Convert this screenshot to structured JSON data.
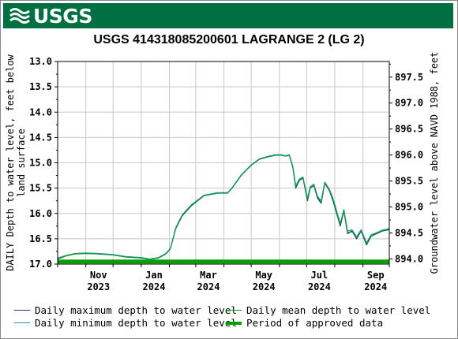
{
  "header": {
    "logo_text": "USGS",
    "logo_icon": "usgs-wave-icon"
  },
  "chart_data": {
    "type": "line",
    "title": "USGS 414318085200601 LAGRANGE 2 (LG 2)",
    "ylabel_left": "DAILY Depth to water level, feet below land surface",
    "ylabel_left_lines": [
      "DAILY Depth to water level, feet below",
      "land surface"
    ],
    "ylabel_right": "Groundwater level above NAVD 1988, feet",
    "ylim_left": [
      17.0,
      13.0
    ],
    "ylim_right": [
      893.9,
      897.8
    ],
    "yticks_left": [
      "13.0",
      "13.5",
      "14.0",
      "14.5",
      "15.0",
      "15.5",
      "16.0",
      "16.5",
      "17.0"
    ],
    "yticks_right": [
      "894.0",
      "894.5",
      "895.0",
      "895.5",
      "896.0",
      "896.5",
      "897.0",
      "897.5"
    ],
    "xticks": [
      {
        "month": "Nov",
        "year": "2023"
      },
      {
        "month": "Jan",
        "year": "2024"
      },
      {
        "month": "Mar",
        "year": "2024"
      },
      {
        "month": "May",
        "year": "2024"
      },
      {
        "month": "Jul",
        "year": "2024"
      },
      {
        "month": "Sep",
        "year": "2024"
      }
    ],
    "grid": true,
    "colors": {
      "max": "#1f3d7a",
      "min": "#2a8fb0",
      "mean": "#00aa00",
      "approved": "#00a000",
      "grid": "#c8c8c8"
    },
    "series": [
      {
        "name": "Daily maximum depth to water level",
        "x": [
          "2023-10-01",
          "2023-10-10",
          "2023-10-20",
          "2023-11-01",
          "2023-11-15",
          "2023-12-01",
          "2023-12-15",
          "2024-01-01",
          "2024-01-10",
          "2024-01-20",
          "2024-01-28",
          "2024-02-02",
          "2024-02-08",
          "2024-02-15",
          "2024-02-25",
          "2024-03-10",
          "2024-03-25",
          "2024-04-05",
          "2024-04-10",
          "2024-04-20",
          "2024-05-01",
          "2024-05-10",
          "2024-05-20",
          "2024-05-28",
          "2024-06-03",
          "2024-06-08",
          "2024-06-12",
          "2024-06-16",
          "2024-06-19",
          "2024-06-23",
          "2024-06-27",
          "2024-07-02",
          "2024-07-05",
          "2024-07-09",
          "2024-07-13",
          "2024-07-17",
          "2024-07-21",
          "2024-07-26",
          "2024-07-30",
          "2024-08-03",
          "2024-08-07",
          "2024-08-11",
          "2024-08-15",
          "2024-08-20",
          "2024-08-25",
          "2024-08-30",
          "2024-09-05",
          "2024-09-10",
          "2024-09-16",
          "2024-09-22",
          "2024-09-30"
        ],
        "y": [
          16.9,
          16.84,
          16.8,
          16.79,
          16.8,
          16.82,
          16.86,
          16.88,
          16.91,
          16.88,
          16.8,
          16.7,
          16.3,
          16.05,
          15.85,
          15.65,
          15.6,
          15.6,
          15.5,
          15.25,
          15.05,
          14.93,
          14.88,
          14.85,
          14.85,
          14.87,
          14.85,
          15.1,
          15.5,
          15.35,
          15.3,
          15.75,
          15.5,
          15.45,
          15.7,
          15.8,
          15.4,
          15.55,
          15.75,
          16.0,
          16.25,
          15.95,
          16.4,
          16.35,
          16.5,
          16.35,
          16.62,
          16.45,
          16.4,
          16.35,
          16.32
        ]
      },
      {
        "name": "Daily minimum depth to water level",
        "x": [
          "2023-10-01",
          "2023-10-10",
          "2023-10-20",
          "2023-11-01",
          "2023-11-15",
          "2023-12-01",
          "2023-12-15",
          "2024-01-01",
          "2024-01-10",
          "2024-01-20",
          "2024-01-28",
          "2024-02-02",
          "2024-02-08",
          "2024-02-15",
          "2024-02-25",
          "2024-03-10",
          "2024-03-25",
          "2024-04-05",
          "2024-04-10",
          "2024-04-20",
          "2024-05-01",
          "2024-05-10",
          "2024-05-20",
          "2024-05-28",
          "2024-06-03",
          "2024-06-08",
          "2024-06-12",
          "2024-06-16",
          "2024-06-19",
          "2024-06-23",
          "2024-06-27",
          "2024-07-02",
          "2024-07-05",
          "2024-07-09",
          "2024-07-13",
          "2024-07-17",
          "2024-07-21",
          "2024-07-26",
          "2024-07-30",
          "2024-08-03",
          "2024-08-07",
          "2024-08-11",
          "2024-08-15",
          "2024-08-20",
          "2024-08-25",
          "2024-08-30",
          "2024-09-05",
          "2024-09-10",
          "2024-09-16",
          "2024-09-22",
          "2024-09-30"
        ],
        "y": [
          16.88,
          16.83,
          16.79,
          16.78,
          16.79,
          16.81,
          16.85,
          16.87,
          16.9,
          16.87,
          16.79,
          16.69,
          16.28,
          16.03,
          15.83,
          15.64,
          15.59,
          15.59,
          15.49,
          15.24,
          15.04,
          14.92,
          14.87,
          14.84,
          14.84,
          14.86,
          14.84,
          15.08,
          15.45,
          15.32,
          15.28,
          15.7,
          15.47,
          15.42,
          15.66,
          15.75,
          15.38,
          15.52,
          15.7,
          15.95,
          16.2,
          15.92,
          16.35,
          16.32,
          16.46,
          16.32,
          16.58,
          16.42,
          16.38,
          16.33,
          16.3
        ]
      },
      {
        "name": "Daily mean depth to water level",
        "x": [
          "2023-10-01",
          "2023-10-10",
          "2023-10-20",
          "2023-11-01",
          "2023-11-15",
          "2023-12-01",
          "2023-12-15",
          "2024-01-01",
          "2024-01-10",
          "2024-01-20",
          "2024-01-28",
          "2024-02-02",
          "2024-02-08",
          "2024-02-15",
          "2024-02-25",
          "2024-03-10",
          "2024-03-25",
          "2024-04-05",
          "2024-04-10",
          "2024-04-20",
          "2024-05-01",
          "2024-05-10",
          "2024-05-20",
          "2024-05-28",
          "2024-06-03",
          "2024-06-08",
          "2024-06-12",
          "2024-06-16",
          "2024-06-19",
          "2024-06-23",
          "2024-06-27",
          "2024-07-02",
          "2024-07-05",
          "2024-07-09",
          "2024-07-13",
          "2024-07-17",
          "2024-07-21",
          "2024-07-26",
          "2024-07-30",
          "2024-08-03",
          "2024-08-07",
          "2024-08-11",
          "2024-08-15",
          "2024-08-20",
          "2024-08-25",
          "2024-08-30",
          "2024-09-05",
          "2024-09-10",
          "2024-09-16",
          "2024-09-22",
          "2024-09-30"
        ],
        "y": [
          16.89,
          16.84,
          16.8,
          16.79,
          16.8,
          16.82,
          16.86,
          16.88,
          16.91,
          16.88,
          16.8,
          16.7,
          16.29,
          16.04,
          15.84,
          15.65,
          15.6,
          15.6,
          15.5,
          15.25,
          15.05,
          14.93,
          14.88,
          14.85,
          14.85,
          14.87,
          14.85,
          15.09,
          15.48,
          15.34,
          15.29,
          15.72,
          15.49,
          15.44,
          15.68,
          15.78,
          15.39,
          15.54,
          15.72,
          15.98,
          16.22,
          15.94,
          16.38,
          16.34,
          16.48,
          16.34,
          16.6,
          16.44,
          16.39,
          16.34,
          16.31
        ]
      },
      {
        "name": "Period of approved data",
        "x": [
          "2023-10-01",
          "2024-09-30"
        ],
        "y": [
          16.95,
          16.95
        ]
      }
    ],
    "legend": [
      {
        "label": "Daily maximum depth to water level",
        "style": "max"
      },
      {
        "label": "Daily mean depth to water level",
        "style": "mean"
      },
      {
        "label": "Daily minimum depth to water level",
        "style": "min"
      },
      {
        "label": "Period of approved data",
        "style": "approved"
      }
    ]
  }
}
